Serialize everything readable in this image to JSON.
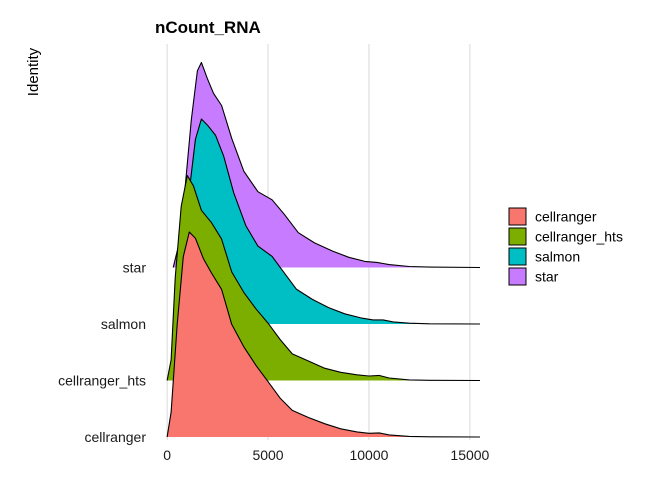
{
  "chart_data": {
    "type": "area",
    "subtype": "ridgeline",
    "title": "nCount_RNA",
    "xlabel": "",
    "ylabel": "Identity",
    "xlim": [
      -600,
      15600
    ],
    "x_ticks": [
      0,
      5000,
      10000,
      15000
    ],
    "x_tick_labels": [
      "0",
      "5000",
      "10000",
      "15000"
    ],
    "grid": true,
    "legend_position": "right",
    "categories": [
      "cellranger",
      "cellranger_hts",
      "salmon",
      "star"
    ],
    "colors": {
      "cellranger": "#F8766D",
      "cellranger_hts": "#7CAE00",
      "salmon": "#00BFC4",
      "star": "#C77CFF"
    },
    "series": [
      {
        "name": "cellranger",
        "density": [
          [
            0,
            0
          ],
          [
            200,
            0.12
          ],
          [
            500,
            0.55
          ],
          [
            800,
            0.88
          ],
          [
            1100,
            1.0
          ],
          [
            1400,
            0.97
          ],
          [
            1800,
            0.87
          ],
          [
            2200,
            0.8
          ],
          [
            2700,
            0.72
          ],
          [
            3200,
            0.55
          ],
          [
            3800,
            0.44
          ],
          [
            4400,
            0.35
          ],
          [
            5000,
            0.27
          ],
          [
            5600,
            0.19
          ],
          [
            6200,
            0.13
          ],
          [
            7000,
            0.095
          ],
          [
            7800,
            0.065
          ],
          [
            8600,
            0.04
          ],
          [
            9400,
            0.025
          ],
          [
            10000,
            0.018
          ],
          [
            10500,
            0.02
          ],
          [
            11000,
            0.01
          ],
          [
            12000,
            0.003
          ],
          [
            13000,
            0.001
          ],
          [
            15500,
            0
          ]
        ]
      },
      {
        "name": "cellranger_hts",
        "density": [
          [
            0,
            0
          ],
          [
            200,
            0.1
          ],
          [
            400,
            0.5
          ],
          [
            700,
            0.85
          ],
          [
            1000,
            1.0
          ],
          [
            1300,
            0.95
          ],
          [
            1700,
            0.83
          ],
          [
            2200,
            0.77
          ],
          [
            2700,
            0.69
          ],
          [
            3200,
            0.53
          ],
          [
            3800,
            0.43
          ],
          [
            4400,
            0.35
          ],
          [
            5000,
            0.28
          ],
          [
            5600,
            0.2
          ],
          [
            6200,
            0.13
          ],
          [
            7000,
            0.095
          ],
          [
            7800,
            0.06
          ],
          [
            8600,
            0.04
          ],
          [
            9400,
            0.028
          ],
          [
            10000,
            0.022
          ],
          [
            10500,
            0.025
          ],
          [
            11000,
            0.012
          ],
          [
            12000,
            0.003
          ],
          [
            13000,
            0.001
          ],
          [
            15500,
            0
          ]
        ]
      },
      {
        "name": "salmon",
        "density": [
          [
            300,
            0
          ],
          [
            500,
            0.1
          ],
          [
            800,
            0.35
          ],
          [
            1100,
            0.65
          ],
          [
            1400,
            0.9
          ],
          [
            1700,
            1.0
          ],
          [
            2000,
            0.97
          ],
          [
            2400,
            0.92
          ],
          [
            2800,
            0.82
          ],
          [
            3300,
            0.64
          ],
          [
            3900,
            0.48
          ],
          [
            4500,
            0.38
          ],
          [
            5200,
            0.33
          ],
          [
            5800,
            0.25
          ],
          [
            6400,
            0.17
          ],
          [
            7200,
            0.12
          ],
          [
            8000,
            0.08
          ],
          [
            8800,
            0.05
          ],
          [
            9600,
            0.03
          ],
          [
            10200,
            0.02
          ],
          [
            10700,
            0.02
          ],
          [
            11200,
            0.01
          ],
          [
            12000,
            0.004
          ],
          [
            13000,
            0.001
          ],
          [
            15500,
            0
          ]
        ]
      },
      {
        "name": "star",
        "density": [
          [
            300,
            0
          ],
          [
            600,
            0.12
          ],
          [
            900,
            0.4
          ],
          [
            1200,
            0.72
          ],
          [
            1500,
            0.96
          ],
          [
            1700,
            1.0
          ],
          [
            2000,
            0.92
          ],
          [
            2300,
            0.85
          ],
          [
            2700,
            0.79
          ],
          [
            3200,
            0.63
          ],
          [
            3800,
            0.47
          ],
          [
            4500,
            0.37
          ],
          [
            5200,
            0.33
          ],
          [
            5800,
            0.26
          ],
          [
            6500,
            0.17
          ],
          [
            7300,
            0.12
          ],
          [
            8200,
            0.08
          ],
          [
            9000,
            0.05
          ],
          [
            9800,
            0.03
          ],
          [
            10400,
            0.025
          ],
          [
            11000,
            0.014
          ],
          [
            12000,
            0.005
          ],
          [
            13000,
            0.002
          ],
          [
            15500,
            0
          ]
        ]
      }
    ]
  }
}
